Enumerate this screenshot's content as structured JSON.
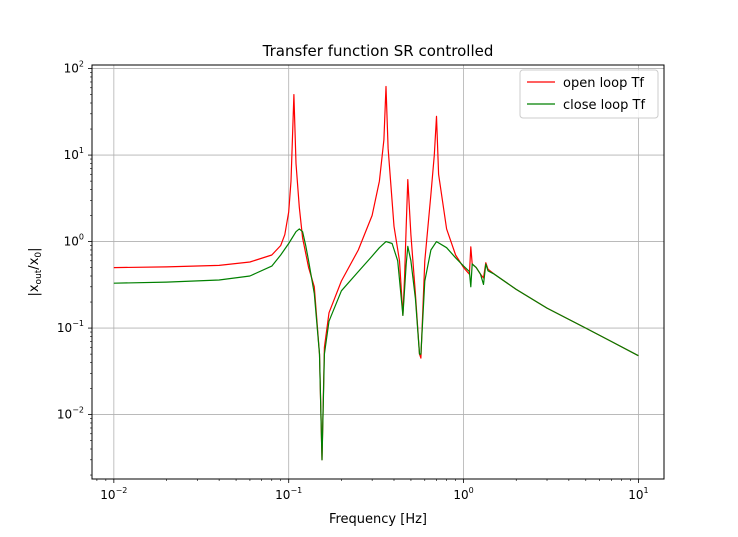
{
  "chart_data": {
    "type": "line",
    "title": "Transfer function SR controlled",
    "xlabel": "Frequency [Hz]",
    "ylabel": {
      "base1": "|x",
      "sub1": "out",
      "mid": "/x",
      "sub2": "0",
      "end": "|"
    },
    "xscale": "log",
    "yscale": "log",
    "xlim": [
      0.0075,
      14
    ],
    "ylim": [
      0.0018,
      110
    ],
    "grid": true,
    "legend_position": "top-right",
    "xticks": [
      {
        "value": 0.01,
        "base": "10",
        "exp": "−2"
      },
      {
        "value": 0.1,
        "base": "10",
        "exp": "−1"
      },
      {
        "value": 1,
        "base": "10",
        "exp": "0"
      },
      {
        "value": 10,
        "base": "10",
        "exp": "1"
      }
    ],
    "yticks": [
      {
        "value": 0.01,
        "base": "10",
        "exp": "−2"
      },
      {
        "value": 0.1,
        "base": "10",
        "exp": "−1"
      },
      {
        "value": 1,
        "base": "10",
        "exp": "0"
      },
      {
        "value": 10,
        "base": "10",
        "exp": "1"
      },
      {
        "value": 100,
        "base": "10",
        "exp": "2"
      }
    ],
    "series": [
      {
        "name": "open loop Tf",
        "color": "#ff0000",
        "x": [
          0.01,
          0.02,
          0.04,
          0.06,
          0.08,
          0.09,
          0.095,
          0.1,
          0.103,
          0.105,
          0.107,
          0.11,
          0.115,
          0.12,
          0.13,
          0.14,
          0.15,
          0.155,
          0.16,
          0.17,
          0.2,
          0.25,
          0.3,
          0.33,
          0.35,
          0.36,
          0.37,
          0.4,
          0.43,
          0.45,
          0.46,
          0.47,
          0.48,
          0.5,
          0.53,
          0.56,
          0.57,
          0.6,
          0.65,
          0.68,
          0.7,
          0.72,
          0.8,
          0.9,
          1.0,
          1.08,
          1.1,
          1.12,
          1.18,
          1.25,
          1.3,
          1.34,
          1.38,
          1.5,
          2.0,
          3.0,
          5.0,
          7.0,
          10.0
        ],
        "y": [
          0.5,
          0.51,
          0.53,
          0.58,
          0.7,
          0.9,
          1.2,
          2.2,
          5,
          15,
          50,
          8,
          2.5,
          1.1,
          0.5,
          0.3,
          0.05,
          0.003,
          0.06,
          0.15,
          0.35,
          0.8,
          2,
          5,
          15,
          62,
          12,
          1.5,
          0.6,
          0.14,
          0.4,
          1.5,
          5.2,
          1.2,
          0.25,
          0.05,
          0.045,
          0.6,
          3.5,
          10,
          28,
          6,
          1.4,
          0.7,
          0.5,
          0.42,
          0.87,
          0.55,
          0.5,
          0.42,
          0.38,
          0.57,
          0.48,
          0.42,
          0.28,
          0.17,
          0.1,
          0.07,
          0.048
        ]
      },
      {
        "name": "close loop Tf",
        "color": "#008000",
        "x": [
          0.01,
          0.02,
          0.04,
          0.06,
          0.08,
          0.09,
          0.1,
          0.11,
          0.115,
          0.12,
          0.125,
          0.13,
          0.14,
          0.15,
          0.155,
          0.16,
          0.17,
          0.2,
          0.25,
          0.3,
          0.33,
          0.36,
          0.39,
          0.42,
          0.45,
          0.47,
          0.48,
          0.5,
          0.53,
          0.56,
          0.57,
          0.6,
          0.65,
          0.7,
          0.8,
          0.9,
          1.0,
          1.08,
          1.1,
          1.12,
          1.18,
          1.25,
          1.3,
          1.34,
          1.38,
          1.5,
          2.0,
          3.0,
          5.0,
          7.0,
          10.0
        ],
        "y": [
          0.33,
          0.34,
          0.36,
          0.4,
          0.52,
          0.7,
          0.95,
          1.3,
          1.4,
          1.3,
          0.9,
          0.6,
          0.25,
          0.05,
          0.003,
          0.05,
          0.12,
          0.27,
          0.45,
          0.68,
          0.85,
          1.0,
          0.95,
          0.6,
          0.14,
          0.55,
          0.88,
          0.6,
          0.22,
          0.05,
          0.05,
          0.35,
          0.8,
          1.0,
          0.85,
          0.65,
          0.52,
          0.45,
          0.3,
          0.55,
          0.5,
          0.42,
          0.32,
          0.55,
          0.46,
          0.42,
          0.28,
          0.17,
          0.1,
          0.07,
          0.048
        ]
      }
    ]
  }
}
